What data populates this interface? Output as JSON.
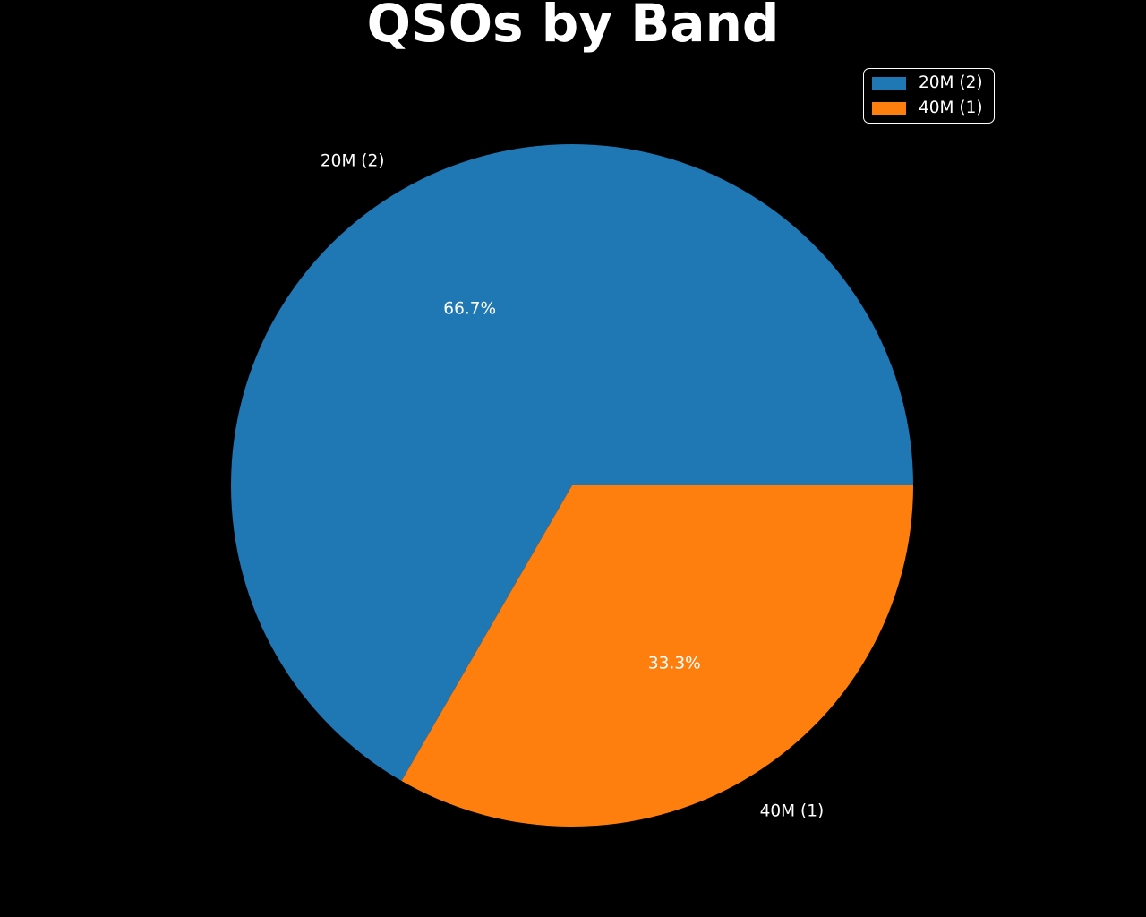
{
  "chart_data": {
    "type": "pie",
    "title": "QSOs by Band",
    "categories": [
      "20M (2)",
      "40M (1)"
    ],
    "values": [
      2,
      1
    ],
    "percent_labels": [
      "66.7%",
      "33.3%"
    ],
    "colors": [
      "#1f77b4",
      "#ff7f0e"
    ],
    "start_angle_deg": 0,
    "direction": "counterclockwise",
    "pct_distance": 0.6,
    "label_distance": 1.1,
    "background_color": "#000000",
    "text_color": "#ffffff",
    "legend": {
      "position": "upper right",
      "entries": [
        {
          "label": "20M (2)",
          "color": "#1f77b4"
        },
        {
          "label": "40M (1)",
          "color": "#ff7f0e"
        }
      ]
    }
  }
}
